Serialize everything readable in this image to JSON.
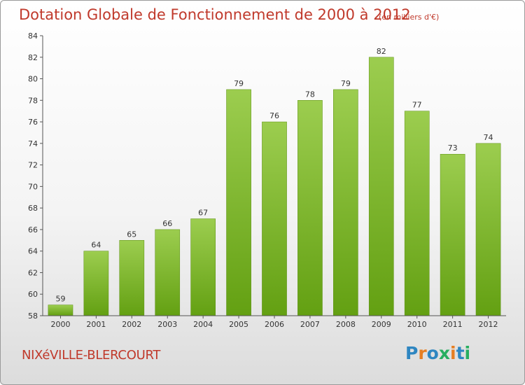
{
  "header": {
    "title": "Dotation Globale de Fonctionnement de 2000 à 2012",
    "unit": "(en milliers d'€)"
  },
  "footer": {
    "commune": "NIXéVILLE-BLERCOURT",
    "logo_text": "Proxiti"
  },
  "colors": {
    "title": "#c0392b",
    "bar_light": "#9ccd4f",
    "bar_dark": "#63a012"
  },
  "chart_data": {
    "type": "bar",
    "title": "Dotation Globale de Fonctionnement de 2000 à 2012",
    "subtitle": "(en milliers d'€)",
    "xlabel": "",
    "ylabel": "",
    "categories": [
      "2000",
      "2001",
      "2002",
      "2003",
      "2004",
      "2005",
      "2006",
      "2007",
      "2008",
      "2009",
      "2010",
      "2011",
      "2012"
    ],
    "values": [
      59,
      64,
      65,
      66,
      67,
      79,
      76,
      78,
      79,
      82,
      77,
      73,
      74
    ],
    "ylim": [
      58,
      84
    ],
    "yticks": [
      58,
      60,
      62,
      64,
      66,
      68,
      70,
      72,
      74,
      76,
      78,
      80,
      82,
      84
    ],
    "grid": false,
    "legend": "none"
  }
}
